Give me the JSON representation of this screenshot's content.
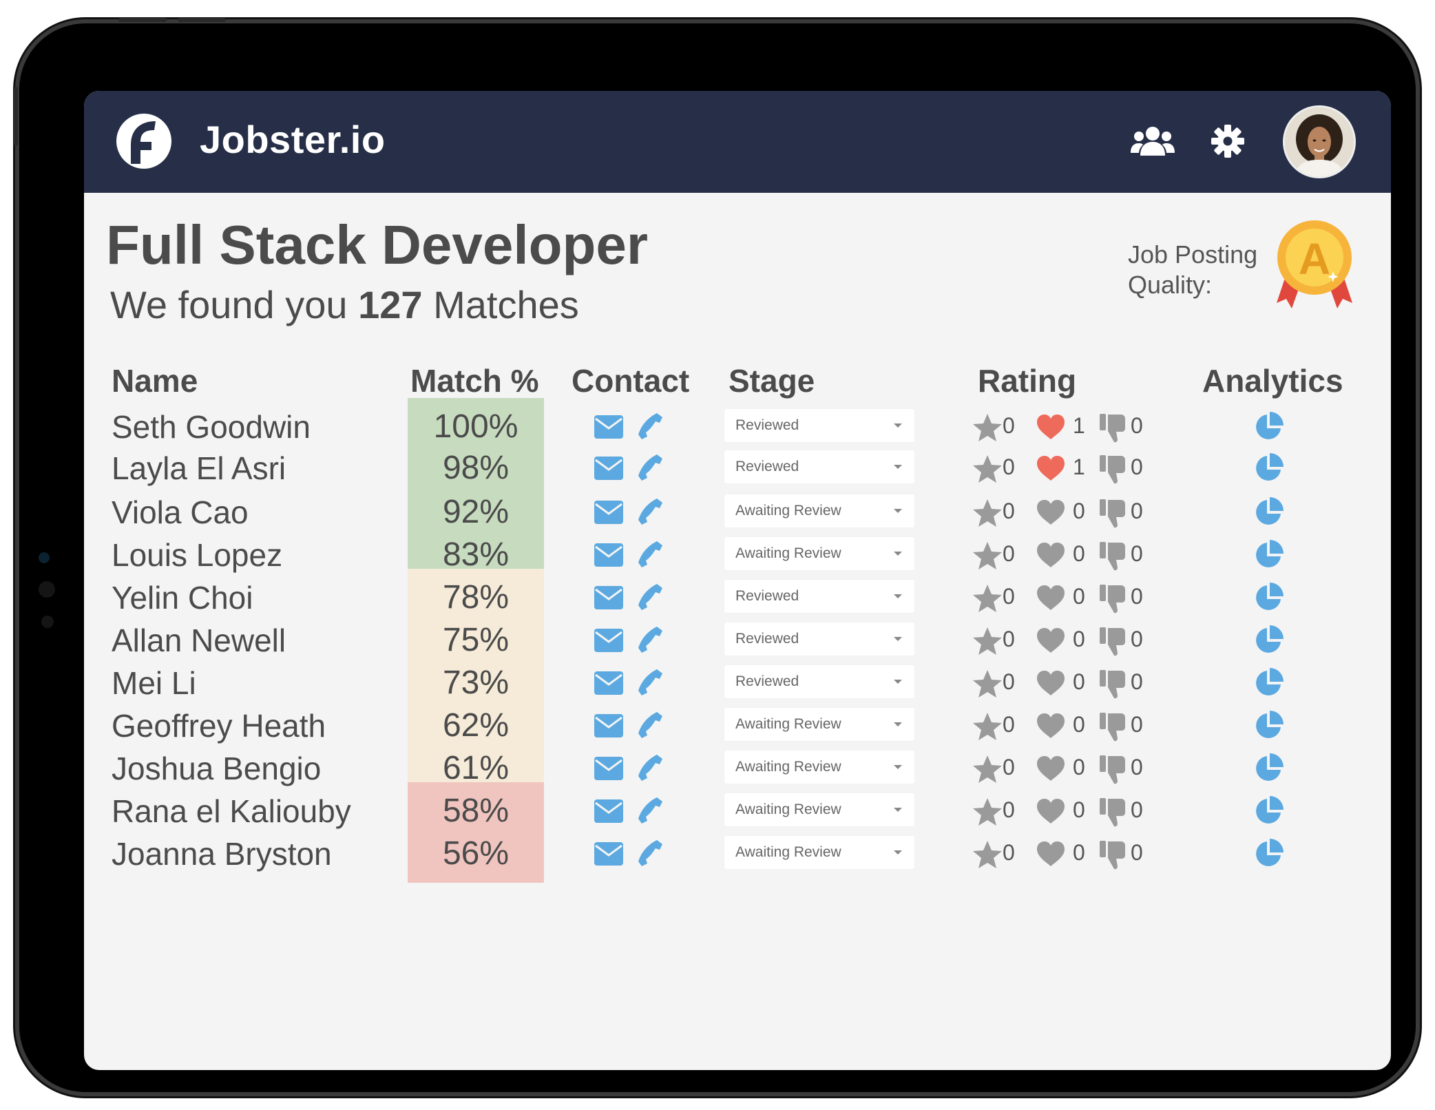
{
  "app": {
    "brand": "Jobster.io"
  },
  "header_icons": [
    "users-icon",
    "gear-icon",
    "avatar"
  ],
  "job": {
    "title": "Full Stack Developer",
    "subtitle_prefix": "We found you",
    "match_count": "127",
    "subtitle_suffix": "Matches",
    "quality_label": "Job Posting Quality:",
    "quality_grade": "A"
  },
  "columns": {
    "name": "Name",
    "match": "Match %",
    "contact": "Contact",
    "stage": "Stage",
    "rating": "Rating",
    "analytics": "Analytics"
  },
  "colors": {
    "header_bg": "#262f47",
    "match_high": "#c7dbbf",
    "match_mid": "#f5ebd8",
    "match_low": "#f1c5bf",
    "icon_blue": "#5ba9e0",
    "heart_active": "#ee6b5b",
    "icon_gray": "#9a9a9a"
  },
  "candidates": [
    {
      "name": "Seth Goodwin",
      "match": "100%",
      "tier": "high",
      "stage": "Reviewed",
      "stars": "0",
      "hearts": "1",
      "dislikes": "0",
      "heart_active": true
    },
    {
      "name": "Layla El Asri",
      "match": "98%",
      "tier": "high",
      "stage": "Reviewed",
      "stars": "0",
      "hearts": "1",
      "dislikes": "0",
      "heart_active": true
    },
    {
      "name": "Viola Cao",
      "match": "92%",
      "tier": "high",
      "stage": "Awaiting Review",
      "stars": "0",
      "hearts": "0",
      "dislikes": "0",
      "heart_active": false
    },
    {
      "name": "Louis Lopez",
      "match": "83%",
      "tier": "high",
      "stage": "Awaiting Review",
      "stars": "0",
      "hearts": "0",
      "dislikes": "0",
      "heart_active": false
    },
    {
      "name": "Yelin Choi",
      "match": "78%",
      "tier": "mid",
      "stage": "Reviewed",
      "stars": "0",
      "hearts": "0",
      "dislikes": "0",
      "heart_active": false
    },
    {
      "name": "Allan Newell",
      "match": "75%",
      "tier": "mid",
      "stage": "Reviewed",
      "stars": "0",
      "hearts": "0",
      "dislikes": "0",
      "heart_active": false
    },
    {
      "name": "Mei Li",
      "match": "73%",
      "tier": "mid",
      "stage": "Reviewed",
      "stars": "0",
      "hearts": "0",
      "dislikes": "0",
      "heart_active": false
    },
    {
      "name": "Geoffrey Heath",
      "match": "62%",
      "tier": "mid",
      "stage": "Awaiting Review",
      "stars": "0",
      "hearts": "0",
      "dislikes": "0",
      "heart_active": false
    },
    {
      "name": "Joshua Bengio",
      "match": "61%",
      "tier": "mid",
      "stage": "Awaiting Review",
      "stars": "0",
      "hearts": "0",
      "dislikes": "0",
      "heart_active": false
    },
    {
      "name": "Rana el Kaliouby",
      "match": "58%",
      "tier": "low",
      "stage": "Awaiting Review",
      "stars": "0",
      "hearts": "0",
      "dislikes": "0",
      "heart_active": false
    },
    {
      "name": "Joanna Bryston",
      "match": "56%",
      "tier": "low",
      "stage": "Awaiting Review",
      "stars": "0",
      "hearts": "0",
      "dislikes": "0",
      "heart_active": false
    }
  ]
}
